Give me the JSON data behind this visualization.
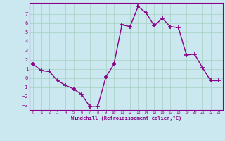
{
  "x": [
    0,
    1,
    2,
    3,
    4,
    5,
    6,
    7,
    8,
    9,
    10,
    11,
    12,
    13,
    14,
    15,
    16,
    17,
    18,
    19,
    20,
    21,
    22,
    23
  ],
  "y": [
    1.5,
    0.8,
    0.7,
    -0.3,
    -0.8,
    -1.2,
    -1.8,
    -3.1,
    -3.1,
    0.1,
    1.5,
    5.8,
    5.6,
    7.8,
    7.1,
    5.7,
    6.5,
    5.6,
    5.5,
    2.5,
    2.6,
    1.1,
    -0.3,
    -0.3
  ],
  "xlabel": "Windchill (Refroidissement éolien,°C)",
  "xlim": [
    -0.5,
    23.5
  ],
  "ylim": [
    -3.5,
    8.2
  ],
  "yticks": [
    -3,
    -2,
    -1,
    0,
    1,
    2,
    3,
    4,
    5,
    6,
    7
  ],
  "xticks": [
    0,
    1,
    2,
    3,
    4,
    5,
    6,
    7,
    8,
    9,
    10,
    11,
    12,
    13,
    14,
    15,
    16,
    17,
    18,
    19,
    20,
    21,
    22,
    23
  ],
  "line_color": "#880088",
  "marker": "+",
  "bg_color": "#cbe8f0",
  "grid_color": "#aad4c8",
  "font_color": "#880088",
  "font_family": "monospace",
  "markersize": 4,
  "linewidth": 1.0
}
